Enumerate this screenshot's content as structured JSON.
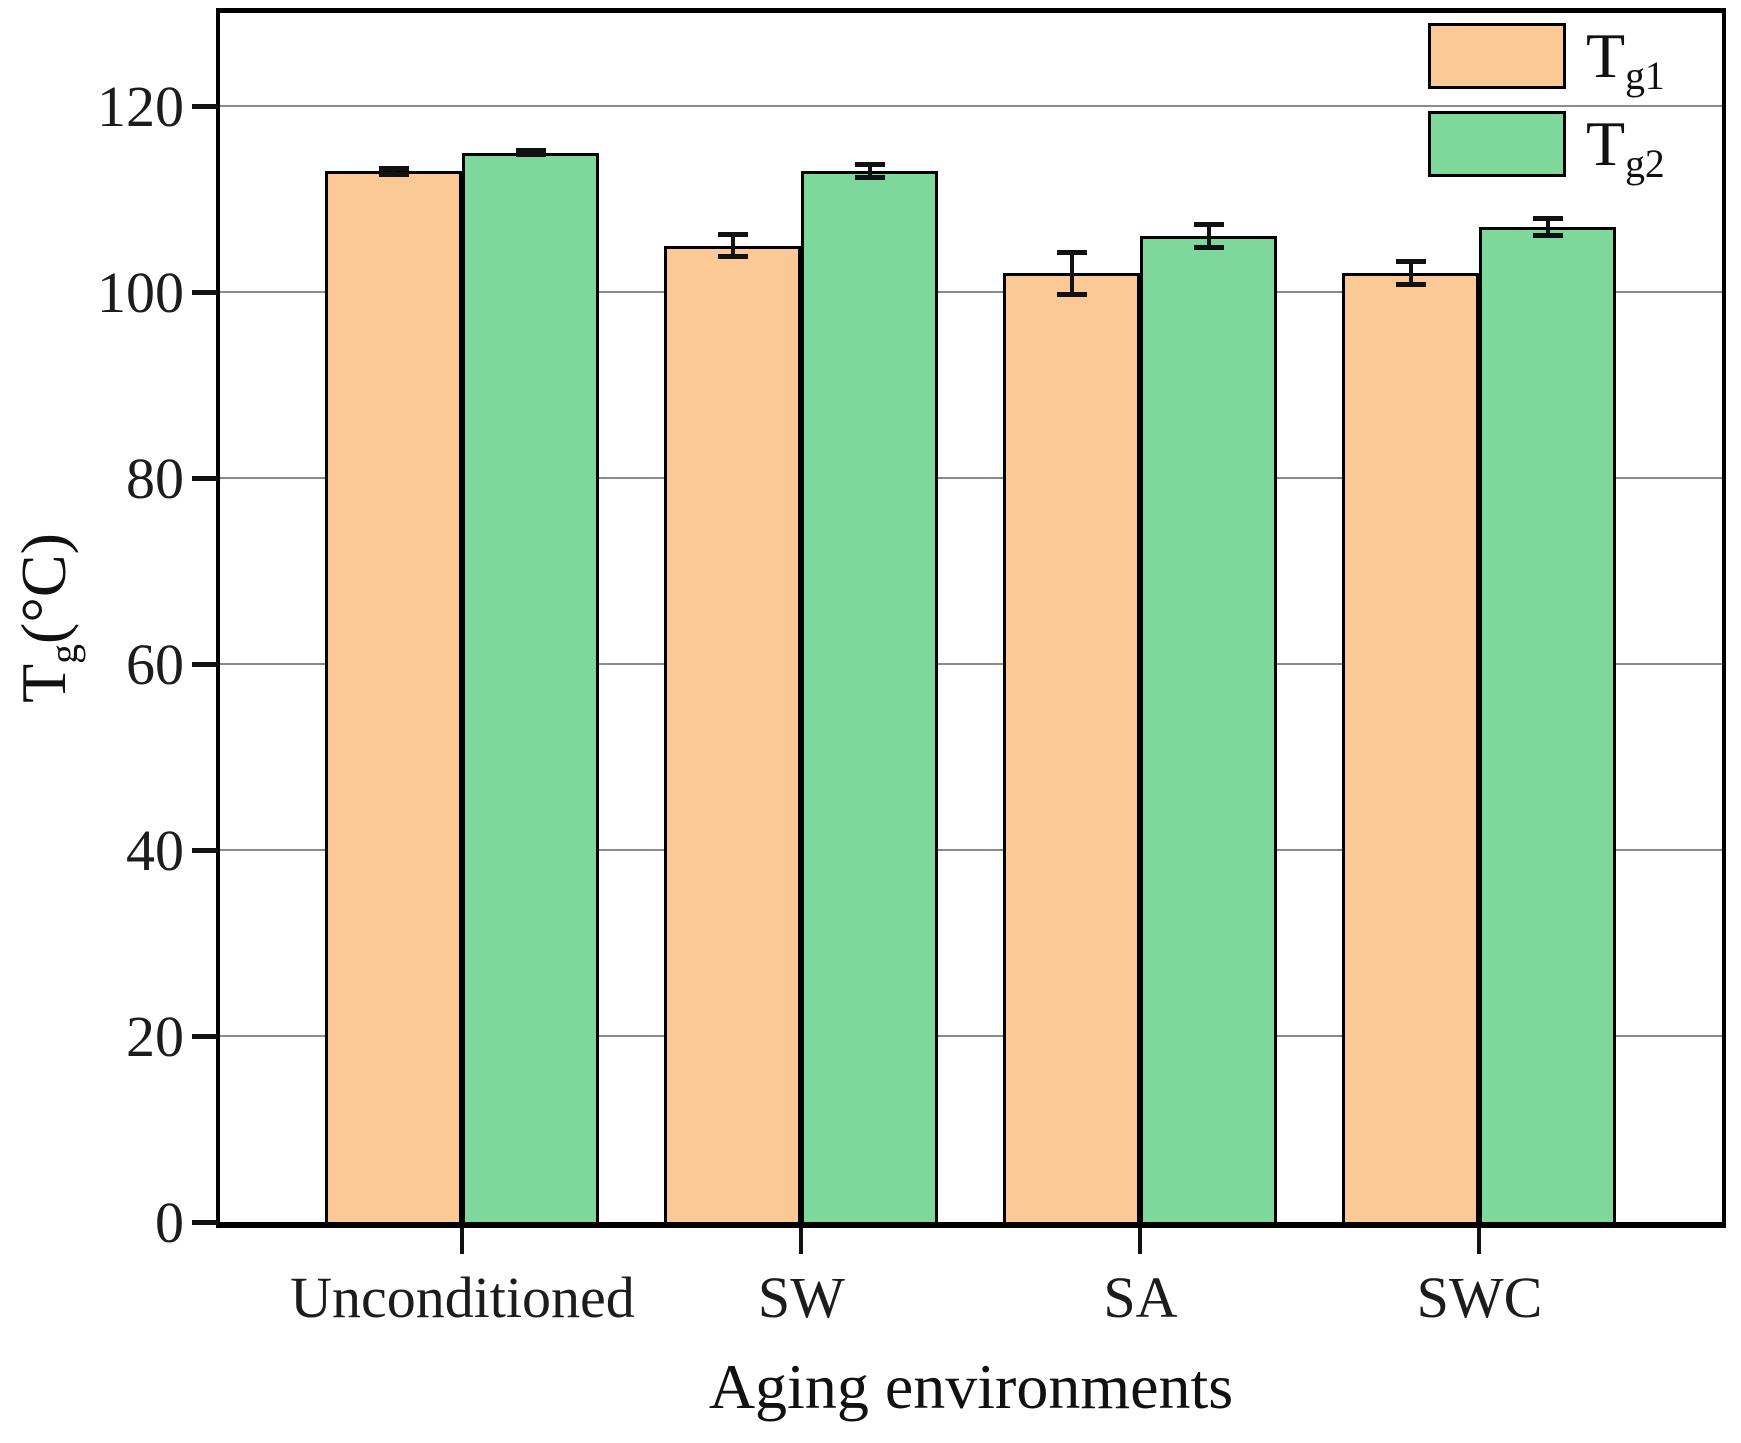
{
  "chart_data": {
    "type": "bar",
    "title": "",
    "xlabel": "Aging environments",
    "ylabel": {
      "base": "T",
      "sub": "g",
      "suffix": "(°C)"
    },
    "ylabel_text": "Tg(°C)",
    "categories": [
      "Unconditioned",
      "SW",
      "SA",
      "SWC"
    ],
    "series": [
      {
        "name": "Tg1",
        "label_base": "T",
        "label_sub": "g1",
        "color": "#FBC996",
        "values": [
          113,
          105,
          102,
          102
        ],
        "errors": [
          0.6,
          1.5,
          2.5,
          1.5
        ]
      },
      {
        "name": "Tg2",
        "label_base": "T",
        "label_sub": "g2",
        "color": "#7ED79B",
        "values": [
          115,
          113,
          106,
          107
        ],
        "errors": [
          0.5,
          1.0,
          1.5,
          1.2
        ]
      }
    ],
    "ylim": [
      0,
      130
    ],
    "yticks": [
      0,
      20,
      40,
      60,
      80,
      100,
      120
    ],
    "grid": true,
    "grid_color": "#8a8a8a",
    "bar_edge_color": "#000000",
    "error_bar_color": "#111111",
    "legend_position": "top-right"
  }
}
